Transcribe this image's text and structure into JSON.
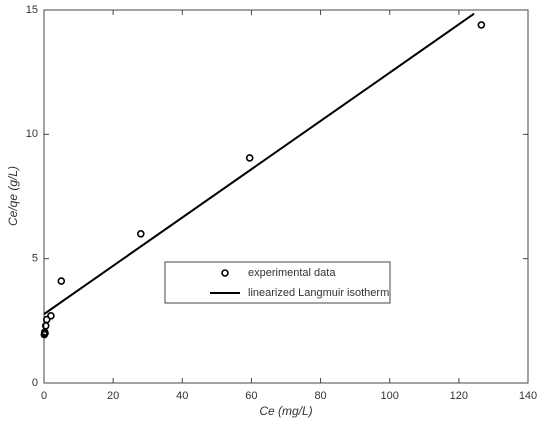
{
  "chart_data": {
    "type": "scatter",
    "xlabel": "Ce (mg/L)",
    "ylabel": "Ce/qe (g/L)",
    "xlim": [
      0,
      140
    ],
    "xticks": [
      0,
      20,
      40,
      60,
      80,
      100,
      120,
      140
    ],
    "ylim": [
      0,
      15
    ],
    "yticks": [
      0,
      5,
      10,
      15
    ],
    "grid": false,
    "legend": "center",
    "series": [
      {
        "name": "experimental data",
        "color": "#000000",
        "style": "marker",
        "x": [
          0.1,
          0.2,
          0.3,
          0.5,
          0.8,
          2,
          5,
          28,
          59.5,
          126.5
        ],
        "values": [
          1.95,
          2.05,
          2.0,
          2.3,
          2.55,
          2.7,
          4.1,
          6.0,
          9.05,
          14.4
        ]
      },
      {
        "name": "linearized Langmuir isotherm",
        "color": "#000000",
        "style": "line",
        "x": [
          0,
          124.4
        ],
        "values": [
          2.77,
          14.85
        ]
      }
    ]
  }
}
